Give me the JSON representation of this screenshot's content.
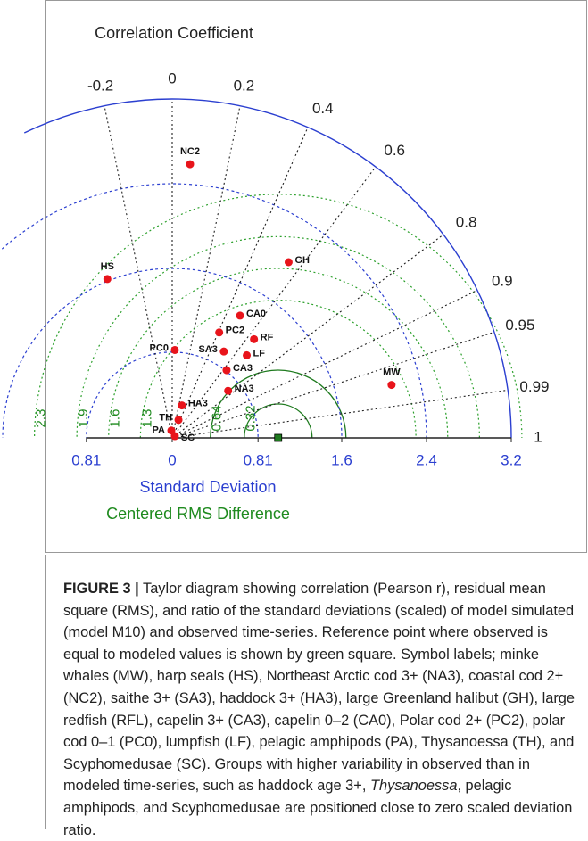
{
  "chart_data": {
    "type": "taylor",
    "title": "Correlation Coefficient",
    "x_label": "Standard Deviation",
    "rms_label": "Centered RMS Difference",
    "xlim": [
      -0.81,
      3.2
    ],
    "xticks": [
      {
        "value": -0.81,
        "label": "0.81"
      },
      0,
      0.81,
      1.6,
      2.4,
      3.2
    ],
    "corr_ticks": [
      -0.2,
      0,
      0.2,
      0.4,
      0.6,
      0.8,
      0.9,
      0.95,
      0.99,
      1
    ],
    "rms_ticks": [
      0.32,
      0.64,
      1.3,
      1.6,
      1.9,
      2.3
    ],
    "reference_std": 1,
    "point_color": "#e8141b",
    "reference_color": "#1f7a1f",
    "points": [
      {
        "label": "MW",
        "std": 2.13,
        "corr": 0.972
      },
      {
        "label": "HS",
        "std": 1.62,
        "corr": -0.378
      },
      {
        "label": "NA3",
        "std": 0.69,
        "corr": 0.765
      },
      {
        "label": "NC2",
        "std": 2.59,
        "corr": 0.065
      },
      {
        "label": "SA3",
        "std": 0.95,
        "corr": 0.513
      },
      {
        "label": "HA3",
        "std": 0.32,
        "corr": 0.285
      },
      {
        "label": "GH",
        "std": 1.99,
        "corr": 0.552
      },
      {
        "label": "RF",
        "std": 1.21,
        "corr": 0.638
      },
      {
        "label": "CA3",
        "std": 0.82,
        "corr": 0.626
      },
      {
        "label": "CA0",
        "std": 1.32,
        "corr": 0.485
      },
      {
        "label": "PC2",
        "std": 1.09,
        "corr": 0.407
      },
      {
        "label": "PC0",
        "std": 0.83,
        "corr": 0.03
      },
      {
        "label": "LF",
        "std": 1.05,
        "corr": 0.67
      },
      {
        "label": "PA",
        "std": 0.07,
        "corr": -0.12
      },
      {
        "label": "TH",
        "std": 0.18,
        "corr": 0.33
      },
      {
        "label": "SC",
        "std": 0.03,
        "corr": 0.83
      }
    ]
  },
  "caption": {
    "label": "FIGURE 3 |",
    "text": "Taylor diagram showing correlation (Pearson r), residual mean square (RMS), and ratio of the standard deviations (scaled) of model simulated (model M10) and observed time-series. Reference point where observed is equal to modeled values is shown by green square. Symbol labels; minke whales (MW), harp seals (HS), Northeast Arctic cod 3+ (NA3), coastal cod 2+ (NC2), saithe 3+ (SA3), haddock 3+ (HA3), large Greenland halibut (GH), large redfish (RFL), capelin 3+ (CA3), capelin 0–2 (CA0), Polar cod 2+ (PC2), polar cod 0–1 (PC0), lumpfish (LF), pelagic amphipods (PA), Thysanoessa (TH), and Scyphomedusae (SC). Groups with higher variability in observed than in modeled time-series, such as haddock age 3+, ",
    "italic": "Thysanoessa",
    "text_end": ", pelagic amphipods, and Scyphomedusae are positioned close to zero scaled deviation ratio."
  }
}
